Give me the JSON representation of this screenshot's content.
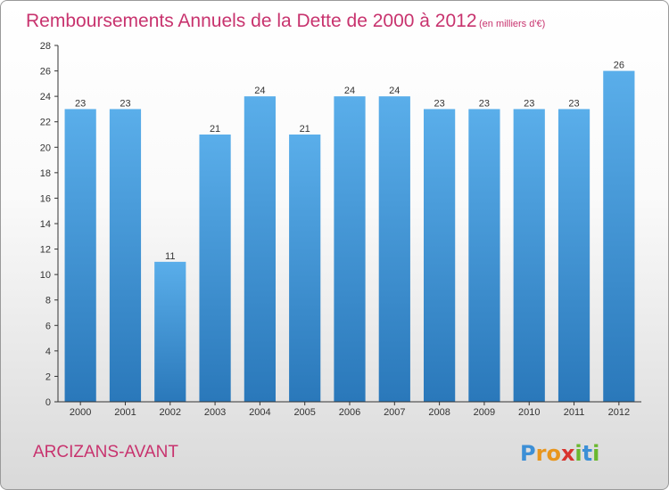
{
  "chart_data": {
    "type": "bar",
    "title": "Remboursements Annuels de la Dette de 2000 à 2012",
    "subtitle": "(en milliers d'€)",
    "categories": [
      "2000",
      "2001",
      "2002",
      "2003",
      "2004",
      "2005",
      "2006",
      "2007",
      "2008",
      "2009",
      "2010",
      "2011",
      "2012"
    ],
    "values": [
      23,
      23,
      11,
      21,
      24,
      21,
      24,
      24,
      23,
      23,
      23,
      23,
      26
    ],
    "ylim": [
      0,
      28
    ],
    "yticks": [
      0,
      2,
      4,
      6,
      8,
      10,
      12,
      14,
      16,
      18,
      20,
      22,
      24,
      26,
      28
    ],
    "grid": false,
    "bar_color": "#4a9fe0"
  },
  "footer": {
    "commune": "ARCIZANS-AVANT",
    "logo_letters": [
      "P",
      "r",
      "o",
      "x",
      "i",
      "t",
      "i"
    ],
    "logo_colors": [
      "#3c8fd6",
      "#e8961e",
      "#e8961e",
      "#d8342e",
      "#6ab82f",
      "#3c8fd6",
      "#6ab82f"
    ]
  }
}
